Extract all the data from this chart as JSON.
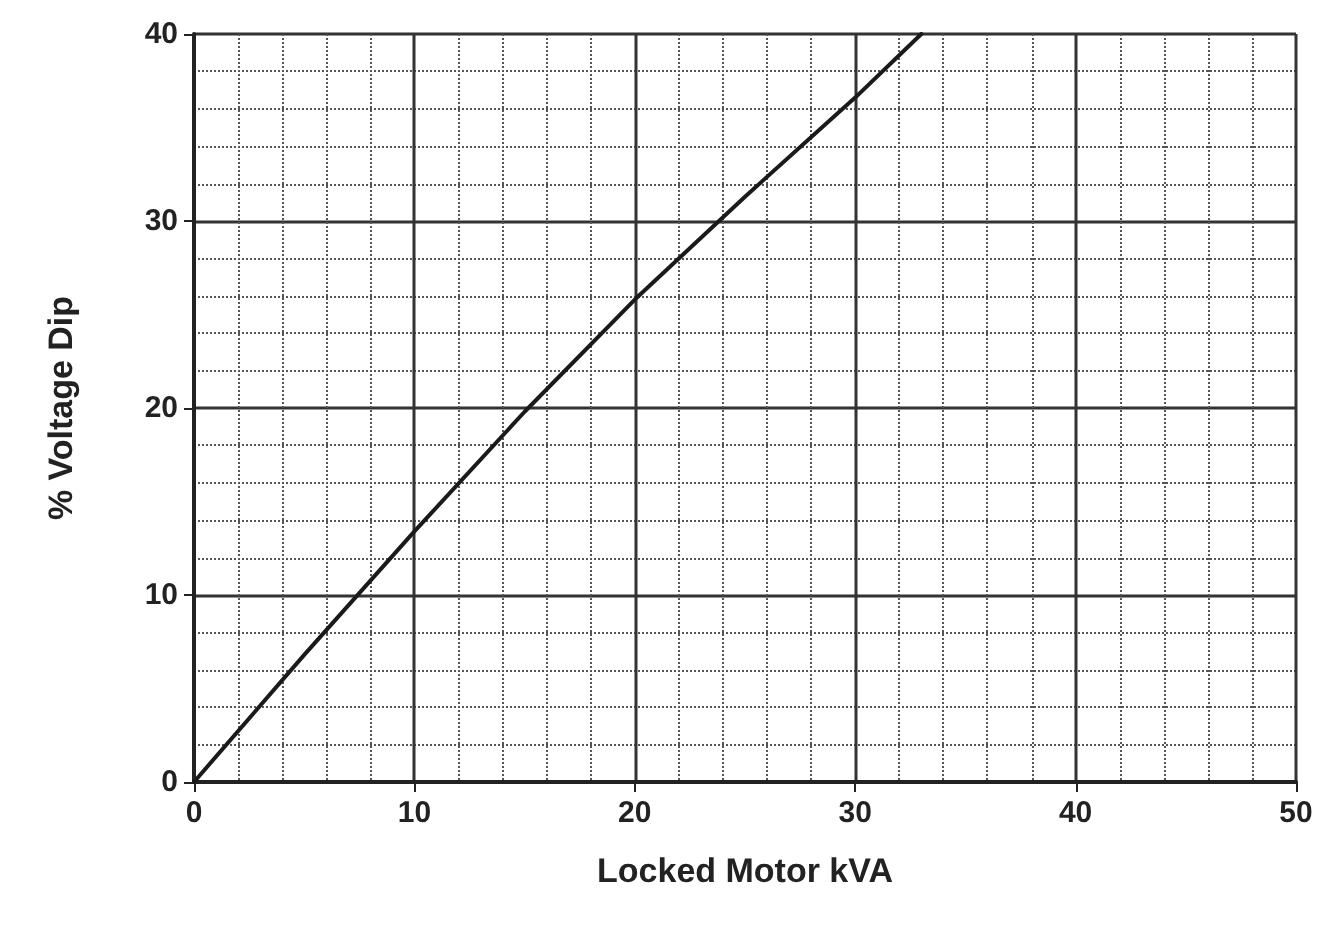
{
  "chart_data": {
    "type": "line",
    "xlabel": "Locked Motor kVA",
    "ylabel": "% Voltage Dip",
    "series": [
      {
        "color": "#1a1a1a",
        "x": [
          0,
          5,
          10,
          15,
          20,
          25,
          30,
          33
        ],
        "values": [
          0,
          6.8,
          13.4,
          19.8,
          25.8,
          31.3,
          36.6,
          40
        ]
      }
    ],
    "xlim": [
      0,
      50
    ],
    "xticks": [
      0,
      10,
      20,
      30,
      40,
      50
    ],
    "ylim": [
      0,
      40
    ],
    "yticks": [
      0,
      10,
      20,
      30,
      40
    ],
    "grid": true,
    "marker": "none",
    "line_style": "solid"
  }
}
